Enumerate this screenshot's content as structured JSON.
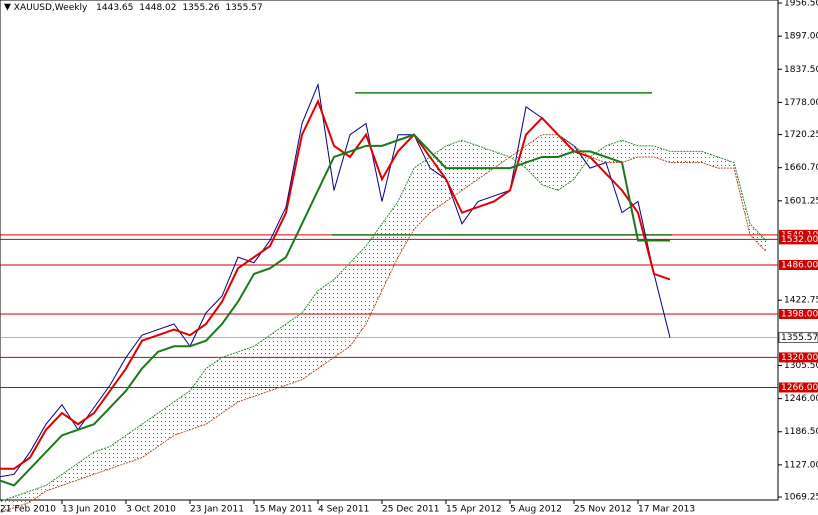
{
  "chart_data": {
    "type": "line",
    "symbol": "XAUUSD,Weekly",
    "ohlc": [
      1443.65,
      1448.02,
      1355.26,
      1355.57
    ],
    "categories": [
      "21 Feb 2010",
      null,
      null,
      null,
      "13 Jun 2010",
      null,
      null,
      null,
      "3 Oct 2010",
      null,
      null,
      null,
      "23 Jan 2011",
      null,
      null,
      null,
      "15 May 2011",
      null,
      null,
      null,
      "4 Sep 2011",
      null,
      null,
      null,
      "25 Dec 2011",
      null,
      null,
      null,
      "15 Apr 2012",
      null,
      null,
      null,
      "5 Aug 2012",
      null,
      null,
      null,
      "25 Nov 2012",
      null,
      null,
      null,
      "17 Mar 2013",
      null,
      null,
      null,
      null,
      null,
      null,
      null,
      null
    ],
    "series": [
      {
        "color": "#000080",
        "values": [
          1105,
          1110,
          1150,
          1200,
          1235,
          1190,
          1230,
          1270,
          1320,
          1360,
          1370,
          1380,
          1340,
          1400,
          1430,
          1500,
          1490,
          1530,
          1590,
          1740,
          1810,
          1620,
          1720,
          1740,
          1600,
          1720,
          1720,
          1660,
          1640,
          1560,
          1600,
          1610,
          1620,
          1770,
          1750,
          1720,
          1700,
          1660,
          1670,
          1580,
          1600,
          1470,
          1355.57,
          null,
          null,
          null,
          null,
          null,
          null
        ]
      },
      {
        "color": "#e00000",
        "values": [
          1120,
          1120,
          1140,
          1190,
          1220,
          1200,
          1220,
          1260,
          1300,
          1350,
          1360,
          1370,
          1360,
          1380,
          1420,
          1480,
          1500,
          1520,
          1580,
          1720,
          1780,
          1700,
          1680,
          1720,
          1640,
          1690,
          1720,
          1680,
          1640,
          1580,
          1590,
          1600,
          1620,
          1720,
          1750,
          1720,
          1690,
          1680,
          1650,
          1620,
          1580,
          1470,
          1460,
          null,
          null,
          null,
          null,
          null,
          null
        ]
      },
      {
        "color": "#1a7a1a",
        "values": [
          1100,
          1090,
          1120,
          1150,
          1180,
          1190,
          1200,
          1230,
          1260,
          1300,
          1330,
          1340,
          1340,
          1350,
          1380,
          1420,
          1470,
          1480,
          1500,
          1560,
          1620,
          1680,
          1690,
          1700,
          1700,
          1710,
          1720,
          1690,
          1660,
          1660,
          1660,
          1660,
          1660,
          1670,
          1680,
          1680,
          1690,
          1690,
          1680,
          1670,
          1530,
          1530,
          1530,
          null,
          null,
          null,
          null,
          null,
          null
        ]
      },
      {
        "color": "#2e8b2e",
        "values": [
          1060,
          1070,
          1080,
          1090,
          1110,
          1130,
          1150,
          1160,
          1180,
          1200,
          1220,
          1240,
          1260,
          1300,
          1320,
          1330,
          1340,
          1360,
          1380,
          1400,
          1440,
          1460,
          1490,
          1520,
          1560,
          1600,
          1660,
          1680,
          1700,
          1710,
          1700,
          1690,
          1680,
          1660,
          1630,
          1620,
          1640,
          1680,
          1700,
          1710,
          1700,
          1700,
          1690,
          1690,
          1690,
          1680,
          1670,
          1560,
          1530
        ]
      },
      {
        "color": "#b0502a",
        "values": [
          1040,
          1050,
          1060,
          1080,
          1090,
          1100,
          1110,
          1120,
          1130,
          1140,
          1160,
          1180,
          1190,
          1200,
          1220,
          1240,
          1250,
          1260,
          1270,
          1280,
          1300,
          1320,
          1340,
          1380,
          1440,
          1500,
          1550,
          1580,
          1600,
          1620,
          1640,
          1660,
          1680,
          1700,
          1720,
          1720,
          1700,
          1680,
          1670,
          1670,
          1680,
          1680,
          1670,
          1670,
          1670,
          1660,
          1660,
          1540,
          1510
        ]
      }
    ],
    "ylim": [
      1063.9,
      1961.9
    ],
    "yticks": [
      {
        "value": 1956.5,
        "label": "1956.50"
      },
      {
        "value": 1897,
        "label": "1897.00"
      },
      {
        "value": 1837.5,
        "label": "1837.50"
      },
      {
        "value": 1778,
        "label": "1778.00"
      },
      {
        "value": 1720.25,
        "label": "1720.25"
      },
      {
        "value": 1660.7,
        "label": "1660.70"
      },
      {
        "value": 1601.25,
        "label": "1601.25"
      },
      {
        "value": 1422.75,
        "label": "1422.75"
      },
      {
        "value": 1305.5,
        "label": "1305.50"
      },
      {
        "value": 1246,
        "label": "1246.00"
      },
      {
        "value": 1186.5,
        "label": "1186.50"
      },
      {
        "value": 1127,
        "label": "1127.00"
      },
      {
        "value": 1069.25,
        "label": "1069.25"
      }
    ],
    "levels": [
      {
        "value": 1540.1,
        "label": "1540.10"
      },
      {
        "value": 1532,
        "label": "1532.00"
      },
      {
        "value": 1486,
        "label": "1486.00"
      },
      {
        "value": 1398,
        "label": "1398.00"
      },
      {
        "value": 1320,
        "label": "1320.00"
      },
      {
        "value": 1266,
        "label": "1266.00"
      }
    ],
    "level_color": "#d00000",
    "current_price": 1355.57,
    "channel": [
      1795,
      1540
    ],
    "channel_color": "#1a7a1a"
  }
}
